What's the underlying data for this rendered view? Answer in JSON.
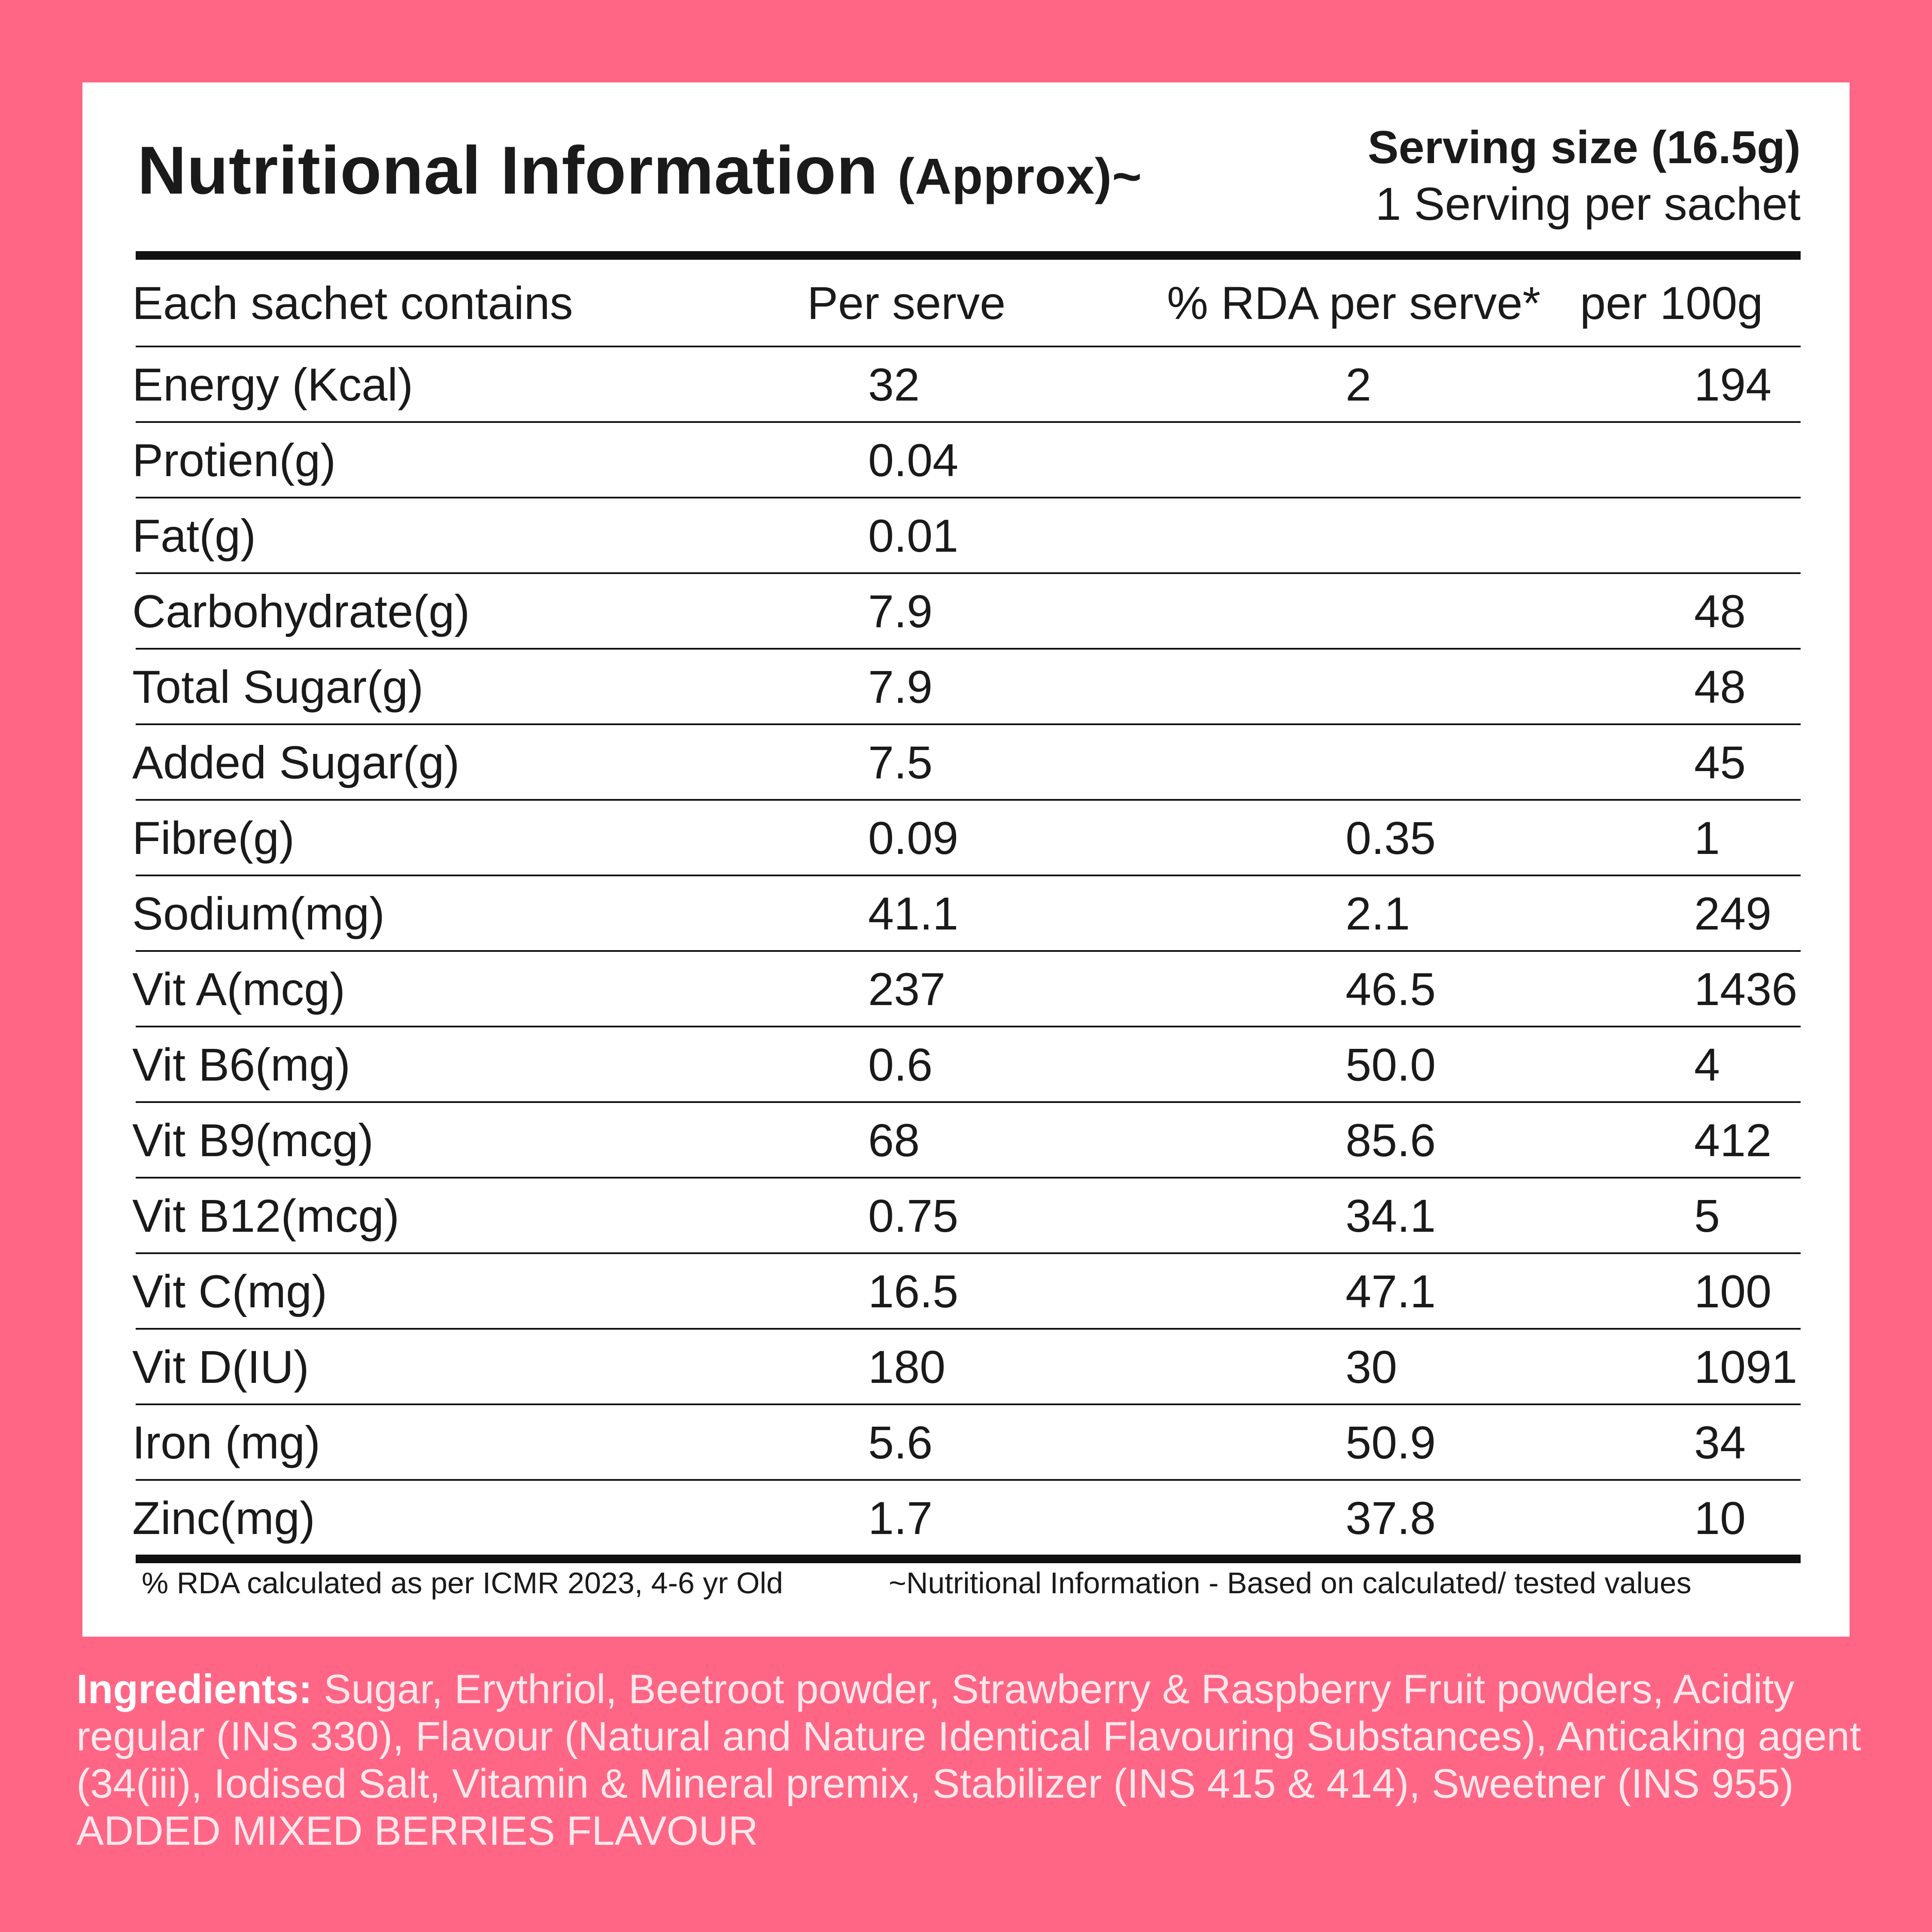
{
  "header": {
    "title": "Nutritional Information",
    "title_suffix": "(Approx)~",
    "serving_label": "Serving size",
    "serving_value": "(16.5g)",
    "servings_per": "1 Serving per sachet"
  },
  "table": {
    "columns": [
      "Each sachet contains",
      "Per serve",
      "% RDA per serve*",
      "per 100g"
    ],
    "rows": [
      [
        "Energy (Kcal)",
        "32",
        "2",
        "194"
      ],
      [
        "Protien(g)",
        "0.04",
        "",
        ""
      ],
      [
        "Fat(g)",
        "0.01",
        "",
        ""
      ],
      [
        "Carbohydrate(g)",
        "7.9",
        "",
        "48"
      ],
      [
        "Total Sugar(g)",
        "7.9",
        "",
        "48"
      ],
      [
        "Added Sugar(g)",
        "7.5",
        "",
        "45"
      ],
      [
        "Fibre(g)",
        "0.09",
        "0.35",
        "1"
      ],
      [
        "Sodium(mg)",
        "41.1",
        "2.1",
        "249"
      ],
      [
        "Vit A(mcg)",
        "237",
        "46.5",
        "1436"
      ],
      [
        "Vit B6(mg)",
        "0.6",
        "50.0",
        "4"
      ],
      [
        "Vit B9(mcg)",
        "68",
        "85.6",
        "412"
      ],
      [
        "Vit B12(mcg)",
        "0.75",
        "34.1",
        "5"
      ],
      [
        "Vit C(mg)",
        "16.5",
        "47.1",
        "100"
      ],
      [
        "Vit D(IU)",
        "180",
        "30",
        "1091"
      ],
      [
        "Iron (mg)",
        "5.6",
        "50.9",
        "34"
      ],
      [
        "Zinc(mg)",
        "1.7",
        "37.8",
        "10"
      ]
    ]
  },
  "footnotes": {
    "rda_note": "% RDA calculated as per ICMR 2023, 4-6 yr Old",
    "basis_note": "~Nutritional Information - Based on calculated/ tested values"
  },
  "ingredients": {
    "label": "Ingredients:",
    "text": " Sugar, Erythriol, Beetroot powder, Strawberry & Raspberry Fruit powders, Acidity regular (INS 330), Flavour (Natural and Nature Identical Flavouring Substances), Anticaking agent (34(iii), Iodised Salt, Vitamin & Mineral premix, Stabilizer (INS 415 & 414), Sweetner (INS 955) ADDED MIXED BERRIES FLAVOUR"
  },
  "colors": {
    "background": "#ff6685",
    "panel": "#ffffff",
    "text": "#1a1a1a"
  }
}
